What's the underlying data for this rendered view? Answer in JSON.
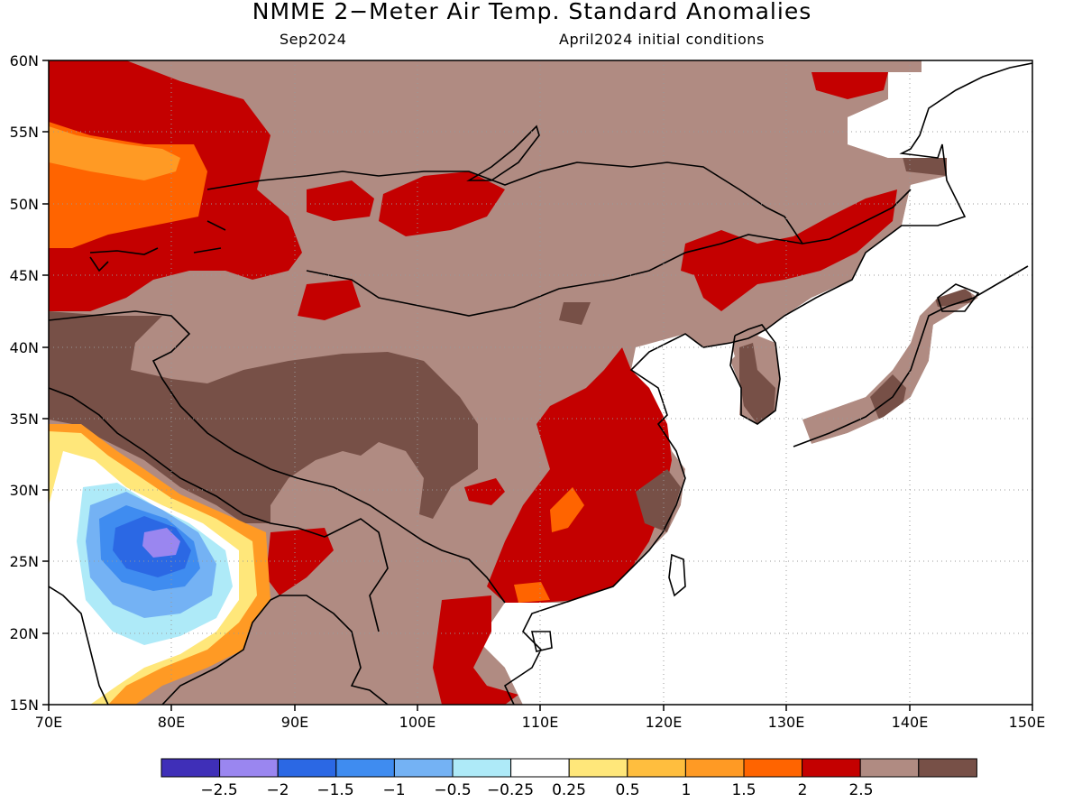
{
  "title": "NMME 2−Meter Air Temp. Standard Anomalies",
  "subtitle_left": "Sep2024",
  "subtitle_right": "April2024 initial conditions",
  "lat_labels": [
    "60N",
    "55N",
    "50N",
    "45N",
    "40N",
    "35N",
    "30N",
    "25N",
    "20N",
    "15N"
  ],
  "lon_labels": [
    "70E",
    "80E",
    "90E",
    "100E",
    "110E",
    "120E",
    "130E",
    "140E",
    "150E"
  ],
  "colorbar": {
    "colors": [
      "#3f2fb8",
      "#9a86f0",
      "#2b68e4",
      "#3f8cf0",
      "#74b2f4",
      "#aeeaf8",
      "#ffffff",
      "#ffe77a",
      "#ffbe3e",
      "#ff9a24",
      "#ff6400",
      "#c40000",
      "#b08b82",
      "#775047"
    ],
    "labels": [
      "−2.5",
      "−2",
      "−1.5",
      "−1",
      "−0.5",
      "−0.25",
      "0.25",
      "0.5",
      "1",
      "1.5",
      "2",
      "2.5"
    ]
  },
  "colors": {
    "land_default": "#b08b82",
    "high_anomaly": "#775047",
    "warm": "#c40000",
    "orange": "#ff6400",
    "grid": "#999999"
  }
}
